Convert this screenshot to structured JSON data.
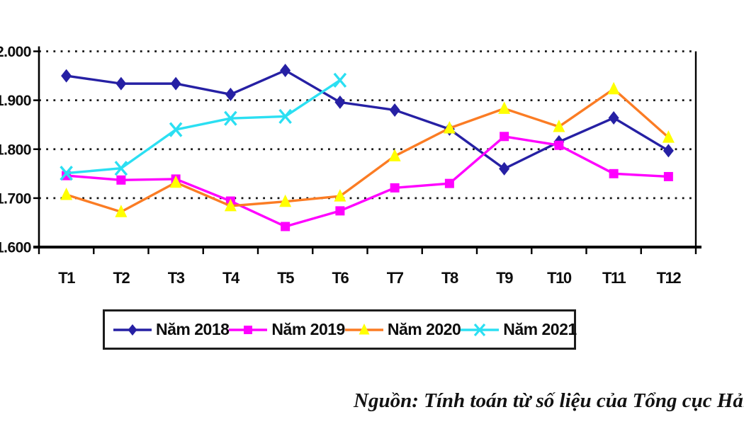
{
  "page": {
    "source_note": "Nguồn: Tính toán từ số liệu của Tổng cục Hải quan"
  },
  "chart_data": {
    "type": "line",
    "title": "",
    "xlabel": "",
    "ylabel": "",
    "categories": [
      "T1",
      "T2",
      "T3",
      "T4",
      "T5",
      "T6",
      "T7",
      "T8",
      "T9",
      "T10",
      "T11",
      "T12"
    ],
    "series": [
      {
        "name": "Năm 2018",
        "color": "#2620A4",
        "marker": "diamond",
        "marker_color": "#2620A4",
        "values": [
          1950,
          1934,
          1934,
          1912,
          1961,
          1896,
          1880,
          1841,
          1760,
          1815,
          1864,
          1797
        ]
      },
      {
        "name": "Năm 2019",
        "color": "#FF00FF",
        "marker": "square",
        "marker_color": "#FF00FF",
        "values": [
          1746,
          1737,
          1739,
          1694,
          1642,
          1674,
          1721,
          1730,
          1826,
          1808,
          1750,
          1744
        ]
      },
      {
        "name": "Năm 2020",
        "color": "#FB7C24",
        "marker": "triangle",
        "marker_color": "#FFFF00",
        "values": [
          1707,
          1672,
          1732,
          1684,
          1693,
          1704,
          1786,
          1843,
          1883,
          1846,
          1923,
          1824
        ]
      },
      {
        "name": "Năm 2021",
        "color": "#2BDFF2",
        "marker": "x",
        "marker_color": "#2BDFF2",
        "values": [
          1751,
          1761,
          1840,
          1863,
          1867,
          1941,
          null,
          null,
          null,
          null,
          null,
          null
        ]
      }
    ],
    "ylim": [
      1600,
      2000
    ],
    "y_ticks": [
      {
        "value": 2000,
        "label": "2.000"
      },
      {
        "value": 1900,
        "label": "1.900"
      },
      {
        "value": 1800,
        "label": "1.800"
      },
      {
        "value": 1700,
        "label": "1.700"
      },
      {
        "value": 1600,
        "label": "1.600"
      }
    ],
    "grid": "horizontal-dotted",
    "legend_position": "bottom",
    "axis_color": "#000000",
    "text_color": "#0d0d0d"
  }
}
